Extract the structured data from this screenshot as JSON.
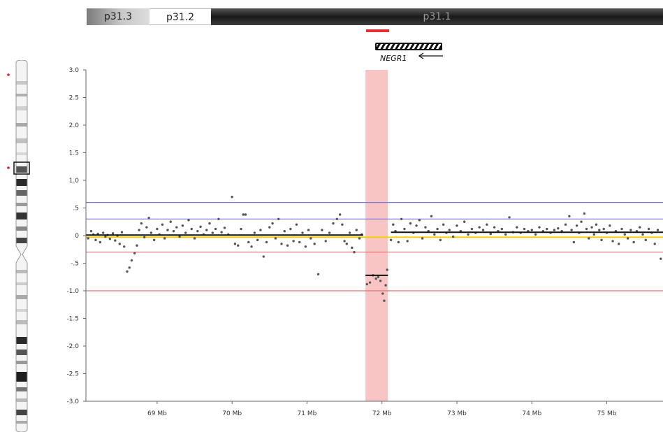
{
  "bands": [
    {
      "label": "p31.3"
    },
    {
      "label": "p31.2"
    },
    {
      "label": "p31.1"
    }
  ],
  "gene": {
    "name": "NEGR1",
    "direction": "reverse"
  },
  "chart_data": {
    "type": "scatter",
    "y_tick_labels": [
      "3.0",
      "2.5",
      "2.0",
      "1.5",
      "1.0",
      ".5",
      "0",
      "-.5",
      "-1.0",
      "-1.5",
      "-2.0",
      "-2.5",
      "-3.0"
    ],
    "ylim": [
      -3.0,
      3.0
    ],
    "xlim": [
      68.05,
      75.75
    ],
    "x_ticks": [
      {
        "value": 69,
        "label": "69 Mb"
      },
      {
        "value": 70,
        "label": "70 Mb"
      },
      {
        "value": 71,
        "label": "71 Mb"
      },
      {
        "value": 72,
        "label": "72 Mb"
      },
      {
        "value": 73,
        "label": "73 Mb"
      },
      {
        "value": 74,
        "label": "74 Mb"
      },
      {
        "value": 75,
        "label": "75 Mb"
      }
    ],
    "thresholds": [
      {
        "y": 0.6,
        "color": "#7777dd"
      },
      {
        "y": 0.3,
        "color": "#7777dd"
      },
      {
        "y": -0.3,
        "color": "#e07070"
      },
      {
        "y": -1.0,
        "color": "#e07070"
      }
    ],
    "baseline": {
      "y": -0.03,
      "color": "#f0d000"
    },
    "highlight_region": {
      "x_start": 71.78,
      "x_end": 72.08,
      "color": "#f8c4c4"
    },
    "segments": [
      {
        "x_start": 68.05,
        "x_end": 71.75,
        "y": 0.01
      },
      {
        "x_start": 71.78,
        "x_end": 72.08,
        "y": -0.72
      },
      {
        "x_start": 72.12,
        "x_end": 75.75,
        "y": 0.06
      }
    ],
    "points": [
      [
        68.08,
        -0.05
      ],
      [
        68.12,
        0.08
      ],
      [
        68.15,
        0.02
      ],
      [
        68.18,
        -0.08
      ],
      [
        68.21,
        0.03
      ],
      [
        68.24,
        -0.12
      ],
      [
        68.28,
        0.05
      ],
      [
        68.31,
        -0.02
      ],
      [
        68.34,
        0.01
      ],
      [
        68.37,
        -0.06
      ],
      [
        68.41,
        0.04
      ],
      [
        68.44,
        -0.09
      ],
      [
        68.47,
        0.0
      ],
      [
        68.5,
        -0.15
      ],
      [
        68.53,
        0.06
      ],
      [
        68.56,
        -0.2
      ],
      [
        68.6,
        -0.65
      ],
      [
        68.63,
        -0.58
      ],
      [
        68.66,
        -0.45
      ],
      [
        68.7,
        -0.32
      ],
      [
        68.73,
        -0.18
      ],
      [
        68.76,
        0.1
      ],
      [
        68.79,
        0.22
      ],
      [
        68.83,
        -0.03
      ],
      [
        68.86,
        0.15
      ],
      [
        68.89,
        0.32
      ],
      [
        68.92,
        0.05
      ],
      [
        68.96,
        -0.08
      ],
      [
        69.0,
        0.12
      ],
      [
        69.03,
        0.02
      ],
      [
        69.07,
        0.2
      ],
      [
        69.1,
        -0.05
      ],
      [
        69.14,
        0.1
      ],
      [
        69.18,
        0.25
      ],
      [
        69.22,
        0.08
      ],
      [
        69.26,
        0.15
      ],
      [
        69.3,
        -0.02
      ],
      [
        69.34,
        0.18
      ],
      [
        69.38,
        0.05
      ],
      [
        69.42,
        0.28
      ],
      [
        69.46,
        0.12
      ],
      [
        69.5,
        -0.05
      ],
      [
        69.54,
        0.08
      ],
      [
        69.58,
        0.16
      ],
      [
        69.62,
        0.02
      ],
      [
        69.66,
        0.1
      ],
      [
        69.7,
        0.22
      ],
      [
        69.74,
        0.05
      ],
      [
        69.78,
        0.12
      ],
      [
        69.82,
        0.3
      ],
      [
        69.86,
        0.06
      ],
      [
        69.9,
        0.14
      ],
      [
        69.95,
        0.02
      ],
      [
        70.0,
        0.7
      ],
      [
        70.04,
        -0.15
      ],
      [
        70.08,
        -0.18
      ],
      [
        70.12,
        0.12
      ],
      [
        70.15,
        0.38
      ],
      [
        70.18,
        0.38
      ],
      [
        70.22,
        -0.12
      ],
      [
        70.26,
        -0.2
      ],
      [
        70.3,
        0.05
      ],
      [
        70.34,
        -0.08
      ],
      [
        70.38,
        0.1
      ],
      [
        70.42,
        -0.38
      ],
      [
        70.46,
        -0.12
      ],
      [
        70.5,
        0.15
      ],
      [
        70.54,
        0.22
      ],
      [
        70.58,
        -0.05
      ],
      [
        70.62,
        0.3
      ],
      [
        70.66,
        -0.15
      ],
      [
        70.7,
        0.08
      ],
      [
        70.74,
        -0.18
      ],
      [
        70.78,
        0.12
      ],
      [
        70.82,
        -0.1
      ],
      [
        70.86,
        0.2
      ],
      [
        70.9,
        -0.12
      ],
      [
        70.94,
        0.05
      ],
      [
        70.98,
        -0.2
      ],
      [
        71.02,
        0.1
      ],
      [
        71.05,
        -0.05
      ],
      [
        71.1,
        -0.15
      ],
      [
        71.15,
        -0.7
      ],
      [
        71.2,
        0.1
      ],
      [
        71.25,
        -0.1
      ],
      [
        71.3,
        0.05
      ],
      [
        71.35,
        0.22
      ],
      [
        71.4,
        0.3
      ],
      [
        71.44,
        0.38
      ],
      [
        71.47,
        0.2
      ],
      [
        71.5,
        -0.1
      ],
      [
        71.53,
        -0.15
      ],
      [
        71.57,
        0.05
      ],
      [
        71.6,
        -0.22
      ],
      [
        71.63,
        -0.3
      ],
      [
        71.66,
        0.1
      ],
      [
        71.7,
        -0.05
      ],
      [
        71.73,
        0.02
      ],
      [
        71.8,
        -0.88
      ],
      [
        71.84,
        -0.85
      ],
      [
        71.88,
        -0.72
      ],
      [
        71.92,
        -0.78
      ],
      [
        71.95,
        -0.75
      ],
      [
        71.98,
        -0.82
      ],
      [
        72.01,
        -1.05
      ],
      [
        72.03,
        -1.18
      ],
      [
        72.05,
        -0.9
      ],
      [
        72.07,
        -0.62
      ],
      [
        72.12,
        -0.08
      ],
      [
        72.15,
        0.2
      ],
      [
        72.18,
        0.08
      ],
      [
        72.22,
        -0.12
      ],
      [
        72.26,
        0.3
      ],
      [
        72.3,
        0.12
      ],
      [
        72.34,
        -0.1
      ],
      [
        72.38,
        0.22
      ],
      [
        72.42,
        0.05
      ],
      [
        72.46,
        0.18
      ],
      [
        72.5,
        0.28
      ],
      [
        72.54,
        -0.05
      ],
      [
        72.58,
        0.15
      ],
      [
        72.62,
        0.08
      ],
      [
        72.66,
        0.35
      ],
      [
        72.7,
        0.02
      ],
      [
        72.74,
        0.12
      ],
      [
        72.78,
        -0.08
      ],
      [
        72.82,
        0.2
      ],
      [
        72.86,
        0.05
      ],
      [
        72.9,
        0.1
      ],
      [
        72.95,
        -0.02
      ],
      [
        73.0,
        0.18
      ],
      [
        73.05,
        0.08
      ],
      [
        73.1,
        0.25
      ],
      [
        73.15,
        0.02
      ],
      [
        73.2,
        0.12
      ],
      [
        73.25,
        0.05
      ],
      [
        73.3,
        0.15
      ],
      [
        73.35,
        0.1
      ],
      [
        73.4,
        0.2
      ],
      [
        73.45,
        0.03
      ],
      [
        73.5,
        0.15
      ],
      [
        73.55,
        0.08
      ],
      [
        73.6,
        0.12
      ],
      [
        73.65,
        0.02
      ],
      [
        73.7,
        0.33
      ],
      [
        73.75,
        0.06
      ],
      [
        73.8,
        0.15
      ],
      [
        73.85,
        0.05
      ],
      [
        73.9,
        0.12
      ],
      [
        73.95,
        0.08
      ],
      [
        74.0,
        0.1
      ],
      [
        74.05,
        0.02
      ],
      [
        74.1,
        0.15
      ],
      [
        74.15,
        0.08
      ],
      [
        74.2,
        0.12
      ],
      [
        74.25,
        0.05
      ],
      [
        74.3,
        0.1
      ],
      [
        74.35,
        0.13
      ],
      [
        74.4,
        0.08
      ],
      [
        74.45,
        0.2
      ],
      [
        74.5,
        0.35
      ],
      [
        74.53,
        0.1
      ],
      [
        74.56,
        -0.12
      ],
      [
        74.6,
        0.18
      ],
      [
        74.63,
        0.05
      ],
      [
        74.66,
        0.25
      ],
      [
        74.7,
        0.4
      ],
      [
        74.73,
        0.12
      ],
      [
        74.76,
        -0.05
      ],
      [
        74.8,
        0.15
      ],
      [
        74.83,
        0.02
      ],
      [
        74.86,
        0.2
      ],
      [
        74.9,
        0.1
      ],
      [
        74.93,
        -0.08
      ],
      [
        74.96,
        0.12
      ],
      [
        75.0,
        0.05
      ],
      [
        75.04,
        0.18
      ],
      [
        75.08,
        -0.1
      ],
      [
        75.12,
        0.08
      ],
      [
        75.16,
        -0.15
      ],
      [
        75.2,
        0.12
      ],
      [
        75.24,
        0.02
      ],
      [
        75.28,
        -0.05
      ],
      [
        75.32,
        0.1
      ],
      [
        75.36,
        -0.12
      ],
      [
        75.4,
        0.08
      ],
      [
        75.44,
        0.15
      ],
      [
        75.48,
        0.02
      ],
      [
        75.52,
        -0.08
      ],
      [
        75.56,
        0.12
      ],
      [
        75.6,
        0.05
      ],
      [
        75.64,
        -0.15
      ],
      [
        75.68,
        0.1
      ],
      [
        75.72,
        -0.42
      ]
    ]
  }
}
